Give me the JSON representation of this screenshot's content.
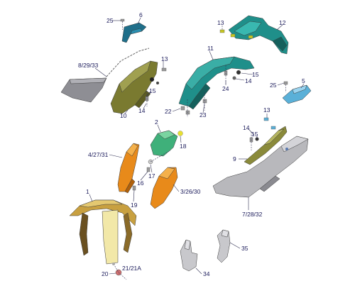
{
  "callouts": {
    "c1": "1",
    "c2": "2",
    "c3": "3/26/30",
    "c4": "4/27/31",
    "c5": "5",
    "c6": "6",
    "c7": "7/28/32",
    "c8": "8/29/33",
    "c9": "9",
    "c10": "10",
    "c11": "11",
    "c12": "12",
    "c13a": "13",
    "c13b": "13",
    "c13c": "13",
    "c14a": "14",
    "c14b": "14",
    "c14c": "14",
    "c15a": "15",
    "c15b": "15",
    "c15c": "15",
    "c16": "16",
    "c17": "17",
    "c18": "18",
    "c19": "19",
    "c20": "20",
    "c21": "21/21A",
    "c22": "22",
    "c23": "23",
    "c24": "24",
    "c25a": "25",
    "c25b": "25",
    "c34": "34",
    "c35": "35"
  },
  "colors": {
    "teal": "#1f8f8a",
    "teal_dark": "#14605c",
    "olive": "#8a8a3a",
    "olive_dark": "#5c5c22",
    "orange": "#e88a1a",
    "orange_dark": "#b0600a",
    "green": "#3fb07a",
    "gold": "#c8a040",
    "cream": "#f2e8a8",
    "grey": "#b8b8bc",
    "grey_dark": "#8a8a90",
    "light_blue": "#5ab0d8"
  }
}
